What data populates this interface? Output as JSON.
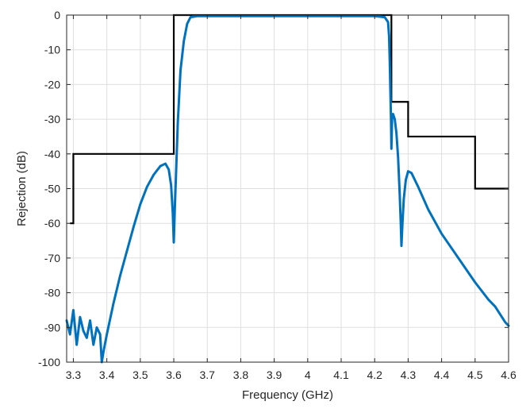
{
  "chart_data": {
    "type": "line",
    "xlabel": "Frequency (GHz)",
    "ylabel": "Rejection (dB)",
    "xlim": [
      3.28,
      4.6
    ],
    "ylim": [
      -100,
      0
    ],
    "x_ticks": [
      3.3,
      3.4,
      3.5,
      3.6,
      3.7,
      3.8,
      3.9,
      4,
      4.1,
      4.2,
      4.3,
      4.4,
      4.5,
      4.6
    ],
    "x_tick_labels": [
      "3.3",
      "3.4",
      "3.5",
      "3.6",
      "3.7",
      "3.8",
      "3.9",
      "4",
      "4.1",
      "4.2",
      "4.3",
      "4.4",
      "4.5",
      "4.6"
    ],
    "y_ticks": [
      0,
      -10,
      -20,
      -30,
      -40,
      -50,
      -60,
      -70,
      -80,
      -90,
      -100
    ],
    "y_tick_labels": [
      "0",
      "-10",
      "-20",
      "-30",
      "-40",
      "-50",
      "-60",
      "-70",
      "-80",
      "-90",
      "-100"
    ],
    "grid": true,
    "box": true,
    "colors": {
      "axis": "#262626",
      "grid": "#dfdfdf",
      "mask": "#000000",
      "response": "#0072bd"
    },
    "series": [
      {
        "style": "step",
        "color": "#000000",
        "x": [
          3.29,
          3.29,
          3.3,
          3.3,
          3.6,
          3.6,
          4.25,
          4.25,
          4.3,
          4.3,
          4.5,
          4.5,
          4.6
        ],
        "y": [
          -60,
          -60,
          -60,
          -40,
          -40,
          0,
          0,
          -25,
          -25,
          -35,
          -35,
          -50,
          -50
        ]
      },
      {
        "style": "line",
        "color": "#0072bd",
        "x": [
          3.28,
          3.29,
          3.3,
          3.31,
          3.32,
          3.33,
          3.34,
          3.35,
          3.36,
          3.37,
          3.38,
          3.385,
          3.39,
          3.4,
          3.42,
          3.44,
          3.46,
          3.48,
          3.5,
          3.52,
          3.54,
          3.56,
          3.575,
          3.585,
          3.592,
          3.597,
          3.6,
          3.603,
          3.607,
          3.612,
          3.62,
          3.63,
          3.64,
          3.65,
          3.67,
          3.7,
          3.8,
          3.9,
          4.0,
          4.1,
          4.2,
          4.23,
          4.24,
          4.243,
          4.245,
          4.247,
          4.249,
          4.25,
          4.252,
          4.255,
          4.26,
          4.265,
          4.27,
          4.275,
          4.278,
          4.28,
          4.283,
          4.287,
          4.293,
          4.3,
          4.31,
          4.33,
          4.36,
          4.4,
          4.45,
          4.5,
          4.54,
          4.56,
          4.58,
          4.59,
          4.6
        ],
        "y": [
          -88,
          -92,
          -85,
          -95,
          -87,
          -91,
          -93,
          -88,
          -95,
          -90,
          -92,
          -100,
          -97,
          -92,
          -83,
          -75,
          -68,
          -61,
          -54.5,
          -49.5,
          -46,
          -43.5,
          -42.8,
          -44.5,
          -49,
          -57,
          -65.5,
          -56,
          -45,
          -31,
          -16,
          -7.5,
          -2.5,
          -0.6,
          -0.3,
          -0.3,
          -0.3,
          -0.3,
          -0.3,
          -0.3,
          -0.3,
          -0.6,
          -2,
          -6,
          -13,
          -22,
          -31,
          -38.5,
          -30,
          -28.5,
          -30,
          -34,
          -41,
          -52,
          -60,
          -66.5,
          -60,
          -53,
          -47.5,
          -45,
          -45.5,
          -49.5,
          -56,
          -63,
          -70,
          -77,
          -82,
          -84,
          -87,
          -88.5,
          -89.5
        ]
      }
    ]
  }
}
